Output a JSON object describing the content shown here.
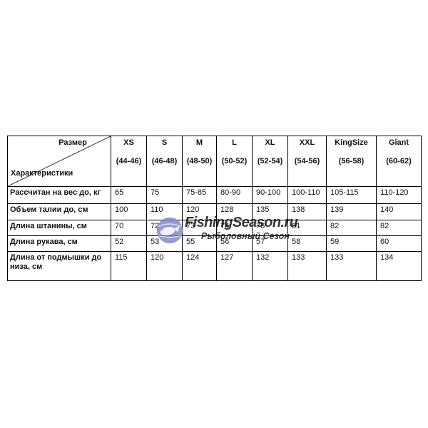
{
  "watermark": {
    "brand": "FishingSeason.ru",
    "subtitle": "Рыболовный Сезон",
    "icon": "globe-fish-icon",
    "color": "#7b7fc2"
  },
  "chart_data": {
    "type": "table",
    "corner": {
      "top_right": "Размер",
      "bottom_left": "Характеристики"
    },
    "columns": [
      {
        "size": "XS",
        "range": "(44-46)"
      },
      {
        "size": "S",
        "range": "(46-48)"
      },
      {
        "size": "M",
        "range": "(48-50)"
      },
      {
        "size": "L",
        "range": "(50-52)"
      },
      {
        "size": "XL",
        "range": "(52-54)"
      },
      {
        "size": "XXL",
        "range": "(54-56)"
      },
      {
        "size": "KingSize",
        "range": "(56-58)"
      },
      {
        "size": "Giant",
        "range": "(60-62)"
      }
    ],
    "rows": [
      {
        "label": "Рассчитан на вес до, кг",
        "values": [
          "65",
          "75",
          "75-85",
          "80-90",
          "90-100",
          "100-110",
          "105-115",
          "110-120"
        ]
      },
      {
        "label": "Объем талии до, см",
        "values": [
          "100",
          "110",
          "120",
          "128",
          "135",
          "138",
          "139",
          "140"
        ]
      },
      {
        "label": "Длина штанины, см",
        "values": [
          "70",
          "72",
          "73",
          "74",
          "75",
          "81",
          "82",
          "82"
        ]
      },
      {
        "label": "Длина рукава, см",
        "values": [
          "52",
          "53",
          "55",
          "56",
          "57",
          "58",
          "59",
          "60"
        ]
      },
      {
        "label": "Длина от подмышки до низа, см",
        "values": [
          "115",
          "120",
          "124",
          "127",
          "132",
          "133",
          "133",
          "134"
        ]
      }
    ]
  }
}
